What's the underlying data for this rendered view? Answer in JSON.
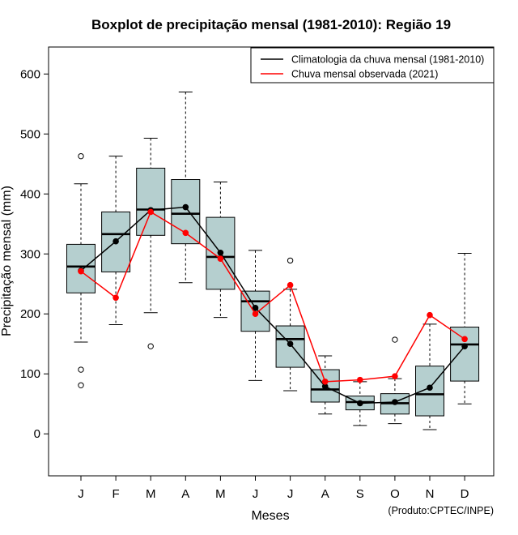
{
  "chart_data": {
    "type": "boxplot",
    "title": "Boxplot de precipitação mensal (1981-2010): Região 19",
    "xlabel": "Meses",
    "ylabel": "Precipitação mensal (mm)",
    "ylim": [
      -70,
      645
    ],
    "yticks": [
      0,
      100,
      200,
      300,
      400,
      500,
      600
    ],
    "categories": [
      "J",
      "F",
      "M",
      "A",
      "M",
      "J",
      "J",
      "A",
      "S",
      "O",
      "N",
      "D"
    ],
    "box_fill": "#b5cfcf",
    "boxes": [
      {
        "min": 153,
        "q1": 235,
        "median": 279,
        "q3": 316,
        "max": 417,
        "outliers": [
          463,
          107,
          81
        ]
      },
      {
        "min": 182,
        "q1": 270,
        "median": 333,
        "q3": 370,
        "max": 463,
        "outliers": []
      },
      {
        "min": 202,
        "q1": 331,
        "median": 374,
        "q3": 443,
        "max": 493,
        "outliers": [
          146
        ]
      },
      {
        "min": 252,
        "q1": 317,
        "median": 367,
        "q3": 424,
        "max": 570,
        "outliers": []
      },
      {
        "min": 194,
        "q1": 241,
        "median": 295,
        "q3": 361,
        "max": 420,
        "outliers": []
      },
      {
        "min": 89,
        "q1": 171,
        "median": 221,
        "q3": 238,
        "max": 306,
        "outliers": []
      },
      {
        "min": 72,
        "q1": 111,
        "median": 158,
        "q3": 180,
        "max": 241,
        "outliers": [
          289
        ]
      },
      {
        "min": 33,
        "q1": 53,
        "median": 74,
        "q3": 107,
        "max": 130,
        "outliers": []
      },
      {
        "min": 14,
        "q1": 40,
        "median": 53,
        "q3": 63,
        "max": 87,
        "outliers": []
      },
      {
        "min": 17,
        "q1": 33,
        "median": 51,
        "q3": 67,
        "max": 92,
        "outliers": [
          157
        ]
      },
      {
        "min": 7,
        "q1": 30,
        "median": 66,
        "q3": 113,
        "max": 183,
        "outliers": []
      },
      {
        "min": 50,
        "q1": 88,
        "median": 149,
        "q3": 178,
        "max": 301,
        "outliers": []
      }
    ],
    "series": [
      {
        "name": "Climatologia da chuva mensal (1981-2010)",
        "color": "#000000",
        "values": [
          272,
          321,
          373,
          378,
          302,
          210,
          150,
          79,
          51,
          53,
          77,
          146
        ]
      },
      {
        "name": "Chuva mensal observada (2021)",
        "color": "#ff0000",
        "values": [
          271,
          227,
          370,
          335,
          292,
          200,
          248,
          87,
          90,
          96,
          198,
          158
        ]
      }
    ],
    "legend_position": "top-right",
    "credit": "(Produto:CPTEC/INPE)"
  }
}
